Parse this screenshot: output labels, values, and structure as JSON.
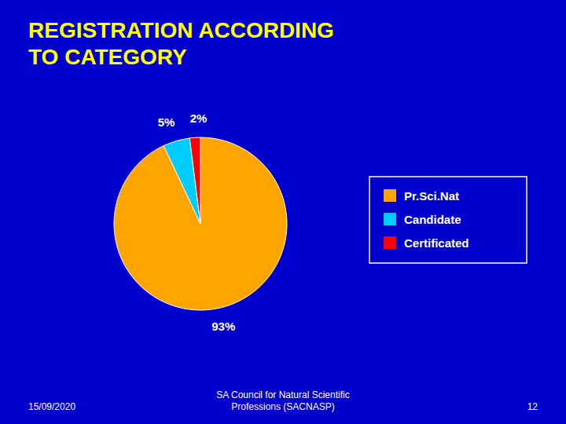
{
  "chart_data": {
    "type": "pie",
    "title": "REGISTRATION ACCORDING\nTO CATEGORY",
    "categories": [
      "Pr.Sci.Nat",
      "Candidate",
      "Certificated"
    ],
    "values": [
      93,
      5,
      2
    ],
    "value_labels": [
      "93%",
      "5%",
      "2%"
    ],
    "colors": [
      "#FFA500",
      "#00CCFF",
      "#FF0000"
    ],
    "data_labels": true,
    "legend": "right",
    "annotations": [
      "15/09/2020",
      "SA Council for Natural Scientific\nProfessions (SACNASP)",
      "12"
    ]
  }
}
